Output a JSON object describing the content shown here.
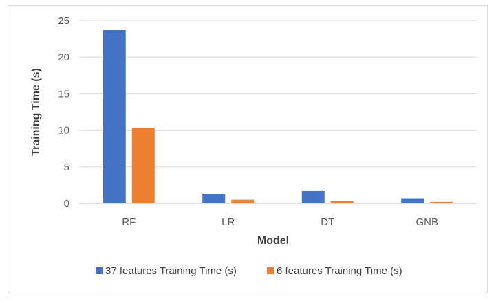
{
  "chart_data": {
    "type": "bar",
    "title": "",
    "xlabel": "Model",
    "ylabel": "Training Time (s)",
    "categories": [
      "RF",
      "LR",
      "DT",
      "GNB"
    ],
    "series": [
      {
        "name": "37 features Training Time (s)",
        "color": "#4472c4",
        "values": [
          23.7,
          1.3,
          1.7,
          0.7
        ]
      },
      {
        "name": "6 features Training Time (s)",
        "color": "#ed7d31",
        "values": [
          10.3,
          0.5,
          0.3,
          0.2
        ]
      }
    ],
    "ylim": [
      0,
      25
    ],
    "yticks": [
      "0",
      "5",
      "10",
      "15",
      "20",
      "25"
    ],
    "grid": true,
    "legend": "bottom"
  }
}
